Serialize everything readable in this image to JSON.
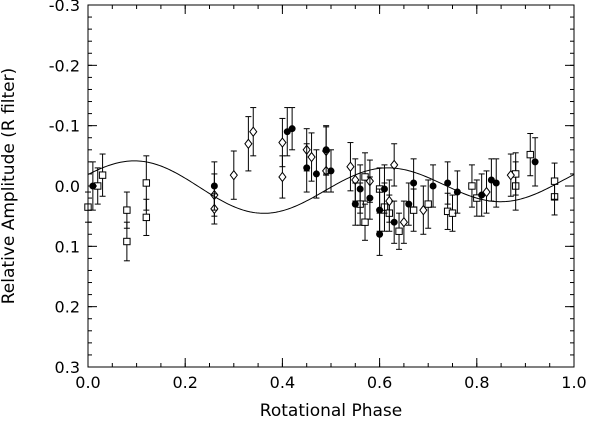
{
  "chart_data": {
    "type": "scatter",
    "title": "",
    "xlabel": "Rotational Phase",
    "ylabel": "Relative Amplitude (R filter)",
    "xlim": [
      0.0,
      1.0
    ],
    "ylim": [
      0.3,
      -0.3
    ],
    "y_inverted": true,
    "grid": false,
    "x_ticks": [
      "0.0",
      "0.2",
      "0.4",
      "0.6",
      "0.8",
      "1.0"
    ],
    "x_tick_values": [
      0.0,
      0.2,
      0.4,
      0.6,
      0.8,
      1.0
    ],
    "y_ticks": [
      "0.3",
      "0.2",
      "0.1",
      "0.0",
      "-0.1",
      "-0.2",
      "-0.3"
    ],
    "y_tick_values": [
      0.3,
      0.2,
      0.1,
      0.0,
      -0.1,
      -0.2,
      -0.3
    ],
    "series": [
      {
        "marker": "square",
        "points": [
          {
            "x": 0.0,
            "y": 0.035,
            "err": 0.025
          },
          {
            "x": 0.02,
            "y": 0.0,
            "err": 0.03
          },
          {
            "x": 0.03,
            "y": -0.018,
            "err": 0.035
          },
          {
            "x": 0.08,
            "y": 0.04,
            "err": 0.03
          },
          {
            "x": 0.08,
            "y": 0.092,
            "err": 0.032
          },
          {
            "x": 0.12,
            "y": -0.005,
            "err": 0.045
          },
          {
            "x": 0.12,
            "y": 0.052,
            "err": 0.03
          },
          {
            "x": 0.56,
            "y": 0.03,
            "err": 0.035
          },
          {
            "x": 0.57,
            "y": -0.015,
            "err": 0.04
          },
          {
            "x": 0.57,
            "y": 0.06,
            "err": 0.03
          },
          {
            "x": 0.6,
            "y": 0.005,
            "err": 0.035
          },
          {
            "x": 0.61,
            "y": 0.035,
            "err": 0.04
          },
          {
            "x": 0.62,
            "y": 0.045,
            "err": 0.03
          },
          {
            "x": 0.64,
            "y": 0.075,
            "err": 0.03
          },
          {
            "x": 0.67,
            "y": 0.04,
            "err": 0.035
          },
          {
            "x": 0.7,
            "y": 0.03,
            "err": 0.04
          },
          {
            "x": 0.74,
            "y": 0.042,
            "err": 0.03
          },
          {
            "x": 0.75,
            "y": 0.045,
            "err": 0.03
          },
          {
            "x": 0.79,
            "y": 0.0,
            "err": 0.035
          },
          {
            "x": 0.8,
            "y": 0.02,
            "err": 0.03
          },
          {
            "x": 0.88,
            "y": 0.0,
            "err": 0.04
          },
          {
            "x": 0.88,
            "y": -0.02,
            "err": 0.035
          },
          {
            "x": 0.91,
            "y": -0.052,
            "err": 0.035
          },
          {
            "x": 0.96,
            "y": 0.018,
            "err": 0.03
          },
          {
            "x": 0.96,
            "y": -0.008,
            "err": 0.03
          }
        ]
      },
      {
        "marker": "diamond",
        "points": [
          {
            "x": 0.26,
            "y": 0.015,
            "err": 0.035
          },
          {
            "x": 0.26,
            "y": 0.038,
            "err": 0.025
          },
          {
            "x": 0.3,
            "y": -0.018,
            "err": 0.04
          },
          {
            "x": 0.33,
            "y": -0.07,
            "err": 0.045
          },
          {
            "x": 0.34,
            "y": -0.09,
            "err": 0.04
          },
          {
            "x": 0.4,
            "y": -0.072,
            "err": 0.04
          },
          {
            "x": 0.4,
            "y": -0.015,
            "err": 0.035
          },
          {
            "x": 0.45,
            "y": -0.06,
            "err": 0.035
          },
          {
            "x": 0.46,
            "y": -0.048,
            "err": 0.04
          },
          {
            "x": 0.49,
            "y": -0.058,
            "err": 0.04
          },
          {
            "x": 0.49,
            "y": -0.025,
            "err": 0.035
          },
          {
            "x": 0.54,
            "y": -0.032,
            "err": 0.04
          },
          {
            "x": 0.55,
            "y": -0.01,
            "err": 0.035
          },
          {
            "x": 0.58,
            "y": -0.008,
            "err": 0.035
          },
          {
            "x": 0.62,
            "y": 0.025,
            "err": 0.035
          },
          {
            "x": 0.63,
            "y": -0.035,
            "err": 0.035
          },
          {
            "x": 0.65,
            "y": 0.06,
            "err": 0.035
          },
          {
            "x": 0.69,
            "y": 0.04,
            "err": 0.04
          },
          {
            "x": 0.82,
            "y": 0.01,
            "err": 0.035
          },
          {
            "x": 0.87,
            "y": -0.018,
            "err": 0.035
          }
        ]
      },
      {
        "marker": "circle",
        "points": [
          {
            "x": 0.01,
            "y": 0.0,
            "err": 0.04
          },
          {
            "x": 0.26,
            "y": 0.0,
            "err": 0.04
          },
          {
            "x": 0.41,
            "y": -0.09,
            "err": 0.04
          },
          {
            "x": 0.42,
            "y": -0.095,
            "err": 0.035
          },
          {
            "x": 0.45,
            "y": -0.03,
            "err": 0.04
          },
          {
            "x": 0.47,
            "y": -0.02,
            "err": 0.04
          },
          {
            "x": 0.49,
            "y": -0.06,
            "err": 0.04
          },
          {
            "x": 0.5,
            "y": -0.025,
            "err": 0.035
          },
          {
            "x": 0.55,
            "y": 0.03,
            "err": 0.035
          },
          {
            "x": 0.56,
            "y": 0.005,
            "err": 0.04
          },
          {
            "x": 0.58,
            "y": 0.02,
            "err": 0.035
          },
          {
            "x": 0.6,
            "y": 0.08,
            "err": 0.035
          },
          {
            "x": 0.6,
            "y": 0.04,
            "err": 0.035
          },
          {
            "x": 0.61,
            "y": 0.005,
            "err": 0.04
          },
          {
            "x": 0.63,
            "y": 0.06,
            "err": 0.035
          },
          {
            "x": 0.66,
            "y": 0.03,
            "err": 0.035
          },
          {
            "x": 0.67,
            "y": -0.005,
            "err": 0.04
          },
          {
            "x": 0.71,
            "y": 0.0,
            "err": 0.035
          },
          {
            "x": 0.74,
            "y": -0.005,
            "err": 0.035
          },
          {
            "x": 0.76,
            "y": 0.01,
            "err": 0.035
          },
          {
            "x": 0.81,
            "y": 0.015,
            "err": 0.035
          },
          {
            "x": 0.83,
            "y": -0.01,
            "err": 0.035
          },
          {
            "x": 0.84,
            "y": -0.005,
            "err": 0.04
          },
          {
            "x": 0.92,
            "y": -0.04,
            "err": 0.04
          }
        ]
      }
    ],
    "fit_curve": {
      "mean": 0.0,
      "harmonics": [
        {
          "n": 1,
          "cos": -0.0105,
          "sin": 0.004
        },
        {
          "n": 2,
          "cos": -0.0085,
          "sin": -0.0345
        }
      ]
    }
  }
}
